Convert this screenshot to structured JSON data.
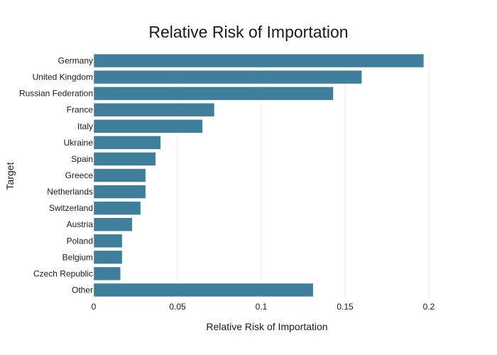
{
  "chart_data": {
    "type": "bar",
    "orientation": "horizontal",
    "title": "Relative Risk of Importation",
    "xlabel": "Relative Risk of Importation",
    "ylabel": "Target",
    "xlim": [
      0,
      0.2
    ],
    "x_ticks": [
      0,
      0.05,
      0.1,
      0.15,
      0.2
    ],
    "x_tick_labels": [
      "0",
      "0.05",
      "0.1",
      "0.15",
      "0.2"
    ],
    "grid": true,
    "bar_color": "#3f7f9b",
    "categories": [
      "Germany",
      "United Kingdom",
      "Russian Federation",
      "France",
      "Italy",
      "Ukraine",
      "Spain",
      "Greece",
      "Netherlands",
      "Switzerland",
      "Austria",
      "Poland",
      "Belgium",
      "Czech Republic",
      "Other"
    ],
    "values": [
      0.197,
      0.16,
      0.143,
      0.072,
      0.065,
      0.04,
      0.037,
      0.031,
      0.031,
      0.028,
      0.023,
      0.017,
      0.017,
      0.016,
      0.131
    ]
  }
}
